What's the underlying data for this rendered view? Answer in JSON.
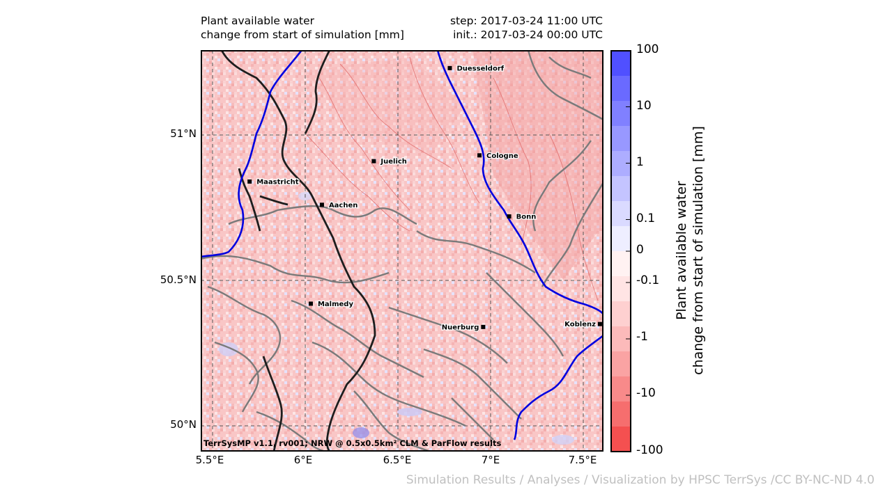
{
  "header": {
    "title_line1": "Plant available water",
    "title_line2": "change from start of simulation [mm]",
    "step_label": "step: 2017-03-24 11:00 UTC",
    "init_label": "init.: 2017-03-24 00:00 UTC"
  },
  "map": {
    "credit": "TerrSysMP v1.1, rv001; NRW @ 0.5x0.5km² CLM & ParFlow results",
    "lat_labels": [
      "51°N",
      "50.5°N",
      "50°N"
    ],
    "lon_labels": [
      "5.5°E",
      "6°E",
      "6.5°E",
      "7°E",
      "7.5°E"
    ],
    "cities": [
      {
        "name": "Duesseldorf",
        "lon": 6.78,
        "lat": 51.23
      },
      {
        "name": "Cologne",
        "lon": 6.94,
        "lat": 50.93
      },
      {
        "name": "Juelich",
        "lon": 6.37,
        "lat": 50.91
      },
      {
        "name": "Maastricht",
        "lon": 5.7,
        "lat": 50.84
      },
      {
        "name": "Aachen",
        "lon": 6.09,
        "lat": 50.76
      },
      {
        "name": "Bonn",
        "lon": 7.1,
        "lat": 50.72
      },
      {
        "name": "Malmedy",
        "lon": 6.03,
        "lat": 50.42
      },
      {
        "name": "Nuerburg",
        "lon": 6.96,
        "lat": 50.34
      },
      {
        "name": "Koblenz",
        "lon": 7.59,
        "lat": 50.35
      }
    ]
  },
  "colorbar": {
    "tick_labels": [
      "100",
      "10",
      "1",
      "0.1",
      "0",
      "-0.1",
      "-1",
      "-10",
      "-100"
    ],
    "title_line1": "Plant available water",
    "title_line2": "change from start of simulation [mm]",
    "colors": [
      "#5050ff",
      "#6a6aff",
      "#8080ff",
      "#9898ff",
      "#adadff",
      "#c4c4ff",
      "#dadaff",
      "#eeeeff",
      "#fff2f2",
      "#ffe4e4",
      "#fed0d0",
      "#fcbaba",
      "#faa3a3",
      "#f88a8a",
      "#f66e6e",
      "#f45050"
    ]
  },
  "footer": "Simulation Results / Analyses / Visualization by HPSC TerrSys /CC BY-NC-ND 4.0"
}
